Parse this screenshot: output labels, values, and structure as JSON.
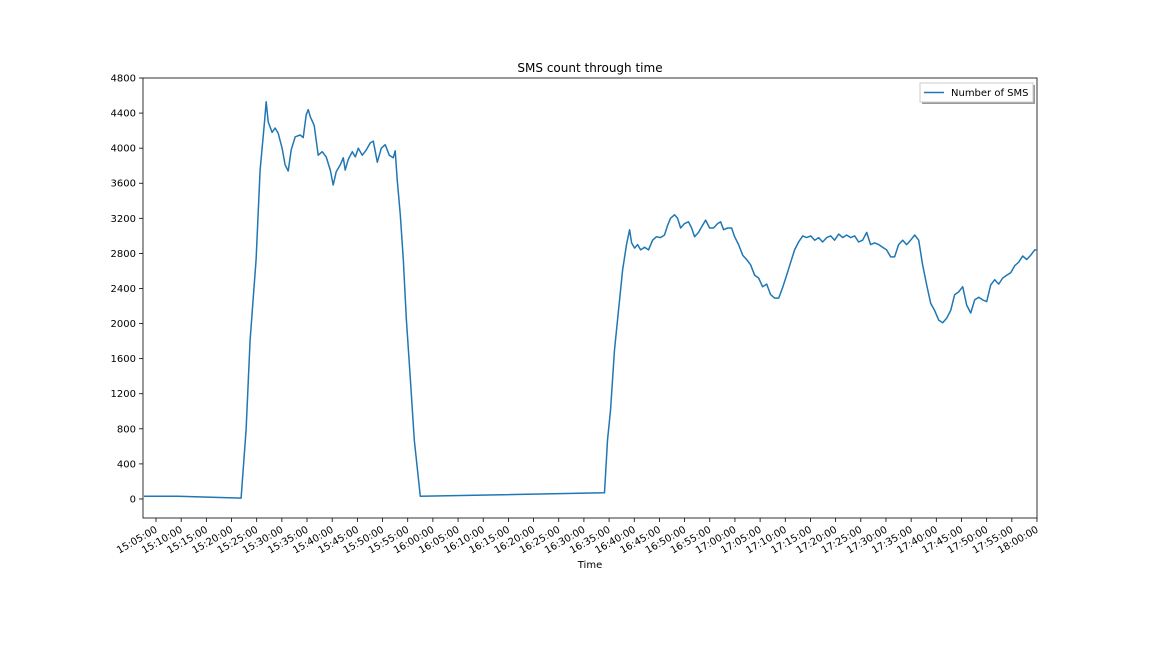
{
  "chart_data": {
    "type": "line",
    "title": "SMS count through time",
    "xlabel": "Time",
    "x": [
      "15:02:37",
      "15:09:22",
      "15:21:54",
      "15:22:54",
      "15:23:41",
      "15:24:53",
      "15:25:41",
      "15:26:29",
      "15:26:53",
      "15:27:17",
      "15:28:04",
      "15:28:40",
      "15:29:16",
      "15:30:03",
      "15:30:39",
      "15:31:15",
      "15:31:51",
      "15:32:39",
      "15:33:38",
      "15:34:14",
      "15:34:50",
      "15:35:14",
      "15:35:38",
      "15:36:26",
      "15:37:13",
      "15:38:01",
      "15:38:49",
      "15:39:37",
      "15:40:12",
      "15:40:48",
      "15:41:36",
      "15:42:12",
      "15:42:35",
      "15:43:11",
      "15:43:59",
      "15:44:35",
      "15:45:11",
      "15:45:59",
      "15:46:46",
      "15:47:34",
      "15:48:10",
      "15:48:57",
      "15:49:45",
      "15:50:32",
      "15:51:20",
      "15:52:07",
      "15:52:31",
      "15:52:55",
      "15:53:31",
      "15:54:07",
      "15:54:44",
      "15:55:32",
      "15:56:19",
      "15:57:30",
      "16:34:05",
      "16:34:41",
      "16:35:17",
      "16:36:05",
      "16:36:53",
      "16:37:41",
      "16:38:28",
      "16:39:04",
      "16:39:28",
      "16:40:04",
      "16:40:40",
      "16:41:15",
      "16:42:03",
      "16:42:50",
      "16:43:38",
      "16:44:25",
      "16:45:13",
      "16:46:01",
      "16:46:37",
      "16:47:12",
      "16:48:00",
      "16:48:36",
      "16:49:12",
      "16:49:59",
      "16:50:47",
      "16:51:23",
      "16:51:59",
      "16:52:46",
      "16:53:34",
      "16:54:10",
      "16:54:58",
      "16:55:46",
      "16:56:33",
      "16:57:09",
      "16:57:45",
      "16:58:33",
      "16:59:20",
      "16:59:56",
      "17:00:44",
      "17:01:32",
      "17:02:19",
      "17:03:07",
      "17:03:55",
      "17:04:42",
      "17:05:30",
      "17:06:18",
      "17:07:05",
      "17:07:53",
      "17:08:41",
      "17:09:28",
      "17:10:16",
      "17:11:04",
      "17:11:51",
      "17:12:39",
      "17:13:27",
      "17:14:15",
      "17:15:03",
      "17:15:50",
      "17:16:38",
      "17:17:25",
      "17:18:13",
      "17:19:01",
      "17:19:48",
      "17:20:36",
      "17:21:24",
      "17:22:11",
      "17:22:59",
      "17:23:47",
      "17:24:34",
      "17:25:22",
      "17:26:10",
      "17:26:57",
      "17:27:45",
      "17:28:33",
      "17:29:20",
      "17:30:08",
      "17:30:56",
      "17:31:43",
      "17:32:31",
      "17:33:19",
      "17:34:06",
      "17:34:54",
      "17:35:42",
      "17:36:30",
      "17:37:17",
      "17:38:05",
      "17:38:53",
      "17:39:40",
      "17:40:28",
      "17:41:16",
      "17:42:03",
      "17:42:51",
      "17:43:39",
      "17:44:26",
      "17:45:14",
      "17:46:02",
      "17:46:50",
      "17:47:37",
      "17:48:25",
      "17:49:13",
      "17:50:00",
      "17:50:48",
      "17:51:36",
      "17:52:23",
      "17:53:11",
      "17:53:59",
      "17:54:46",
      "17:55:34",
      "17:56:22",
      "17:57:09",
      "17:57:57",
      "17:58:45",
      "17:59:32",
      "18:00:00"
    ],
    "series": [
      {
        "name": "Number of SMS",
        "color": "#1f77b4",
        "values": [
          30,
          30,
          10,
          790,
          1810,
          2730,
          3750,
          4260,
          4530,
          4300,
          4180,
          4230,
          4170,
          4000,
          3810,
          3740,
          3980,
          4130,
          4150,
          4120,
          4380,
          4440,
          4360,
          4260,
          3920,
          3960,
          3900,
          3750,
          3580,
          3730,
          3810,
          3890,
          3750,
          3870,
          3960,
          3900,
          4000,
          3920,
          3980,
          4060,
          4080,
          3840,
          4000,
          4040,
          3920,
          3890,
          3970,
          3640,
          3240,
          2730,
          2040,
          1360,
          670,
          30,
          70,
          670,
          1010,
          1700,
          2160,
          2610,
          2900,
          3070,
          2920,
          2860,
          2900,
          2840,
          2870,
          2840,
          2950,
          2990,
          2980,
          3010,
          3120,
          3200,
          3240,
          3200,
          3090,
          3140,
          3160,
          3090,
          2990,
          3040,
          3120,
          3180,
          3090,
          3090,
          3140,
          3160,
          3070,
          3090,
          3090,
          2990,
          2900,
          2780,
          2730,
          2670,
          2550,
          2520,
          2420,
          2450,
          2330,
          2290,
          2290,
          2410,
          2550,
          2700,
          2840,
          2930,
          3000,
          2980,
          3000,
          2950,
          2980,
          2930,
          2980,
          3000,
          2950,
          3020,
          2980,
          3010,
          2980,
          3000,
          2930,
          2950,
          3040,
          2900,
          2920,
          2900,
          2870,
          2840,
          2760,
          2760,
          2900,
          2950,
          2900,
          2950,
          3010,
          2950,
          2670,
          2440,
          2230,
          2150,
          2040,
          2010,
          2060,
          2150,
          2330,
          2360,
          2420,
          2210,
          2120,
          2270,
          2300,
          2270,
          2250,
          2440,
          2500,
          2450,
          2520,
          2550,
          2580,
          2660,
          2700,
          2770,
          2730,
          2780,
          2840,
          2840
        ]
      }
    ],
    "xlim": [
      "15:02:25",
      "18:00:00"
    ],
    "xticks": [
      "15:05:00",
      "15:10:00",
      "15:15:00",
      "15:20:00",
      "15:25:00",
      "15:30:00",
      "15:35:00",
      "15:40:00",
      "15:45:00",
      "15:50:00",
      "15:55:00",
      "16:00:00",
      "16:05:00",
      "16:10:00",
      "16:15:00",
      "16:20:00",
      "16:25:00",
      "16:30:00",
      "16:35:00",
      "16:40:00",
      "16:45:00",
      "16:50:00",
      "16:55:00",
      "17:00:00",
      "17:05:00",
      "17:10:00",
      "17:15:00",
      "17:20:00",
      "17:25:00",
      "17:30:00",
      "17:35:00",
      "17:40:00",
      "17:45:00",
      "17:50:00",
      "17:55:00",
      "18:00:00"
    ],
    "ylim": [
      -217,
      4800
    ],
    "yticks": [
      0,
      400,
      800,
      1200,
      1600,
      2000,
      2400,
      2800,
      3200,
      3600,
      4000,
      4400,
      4800
    ],
    "legend": "upper right",
    "grid": false
  }
}
